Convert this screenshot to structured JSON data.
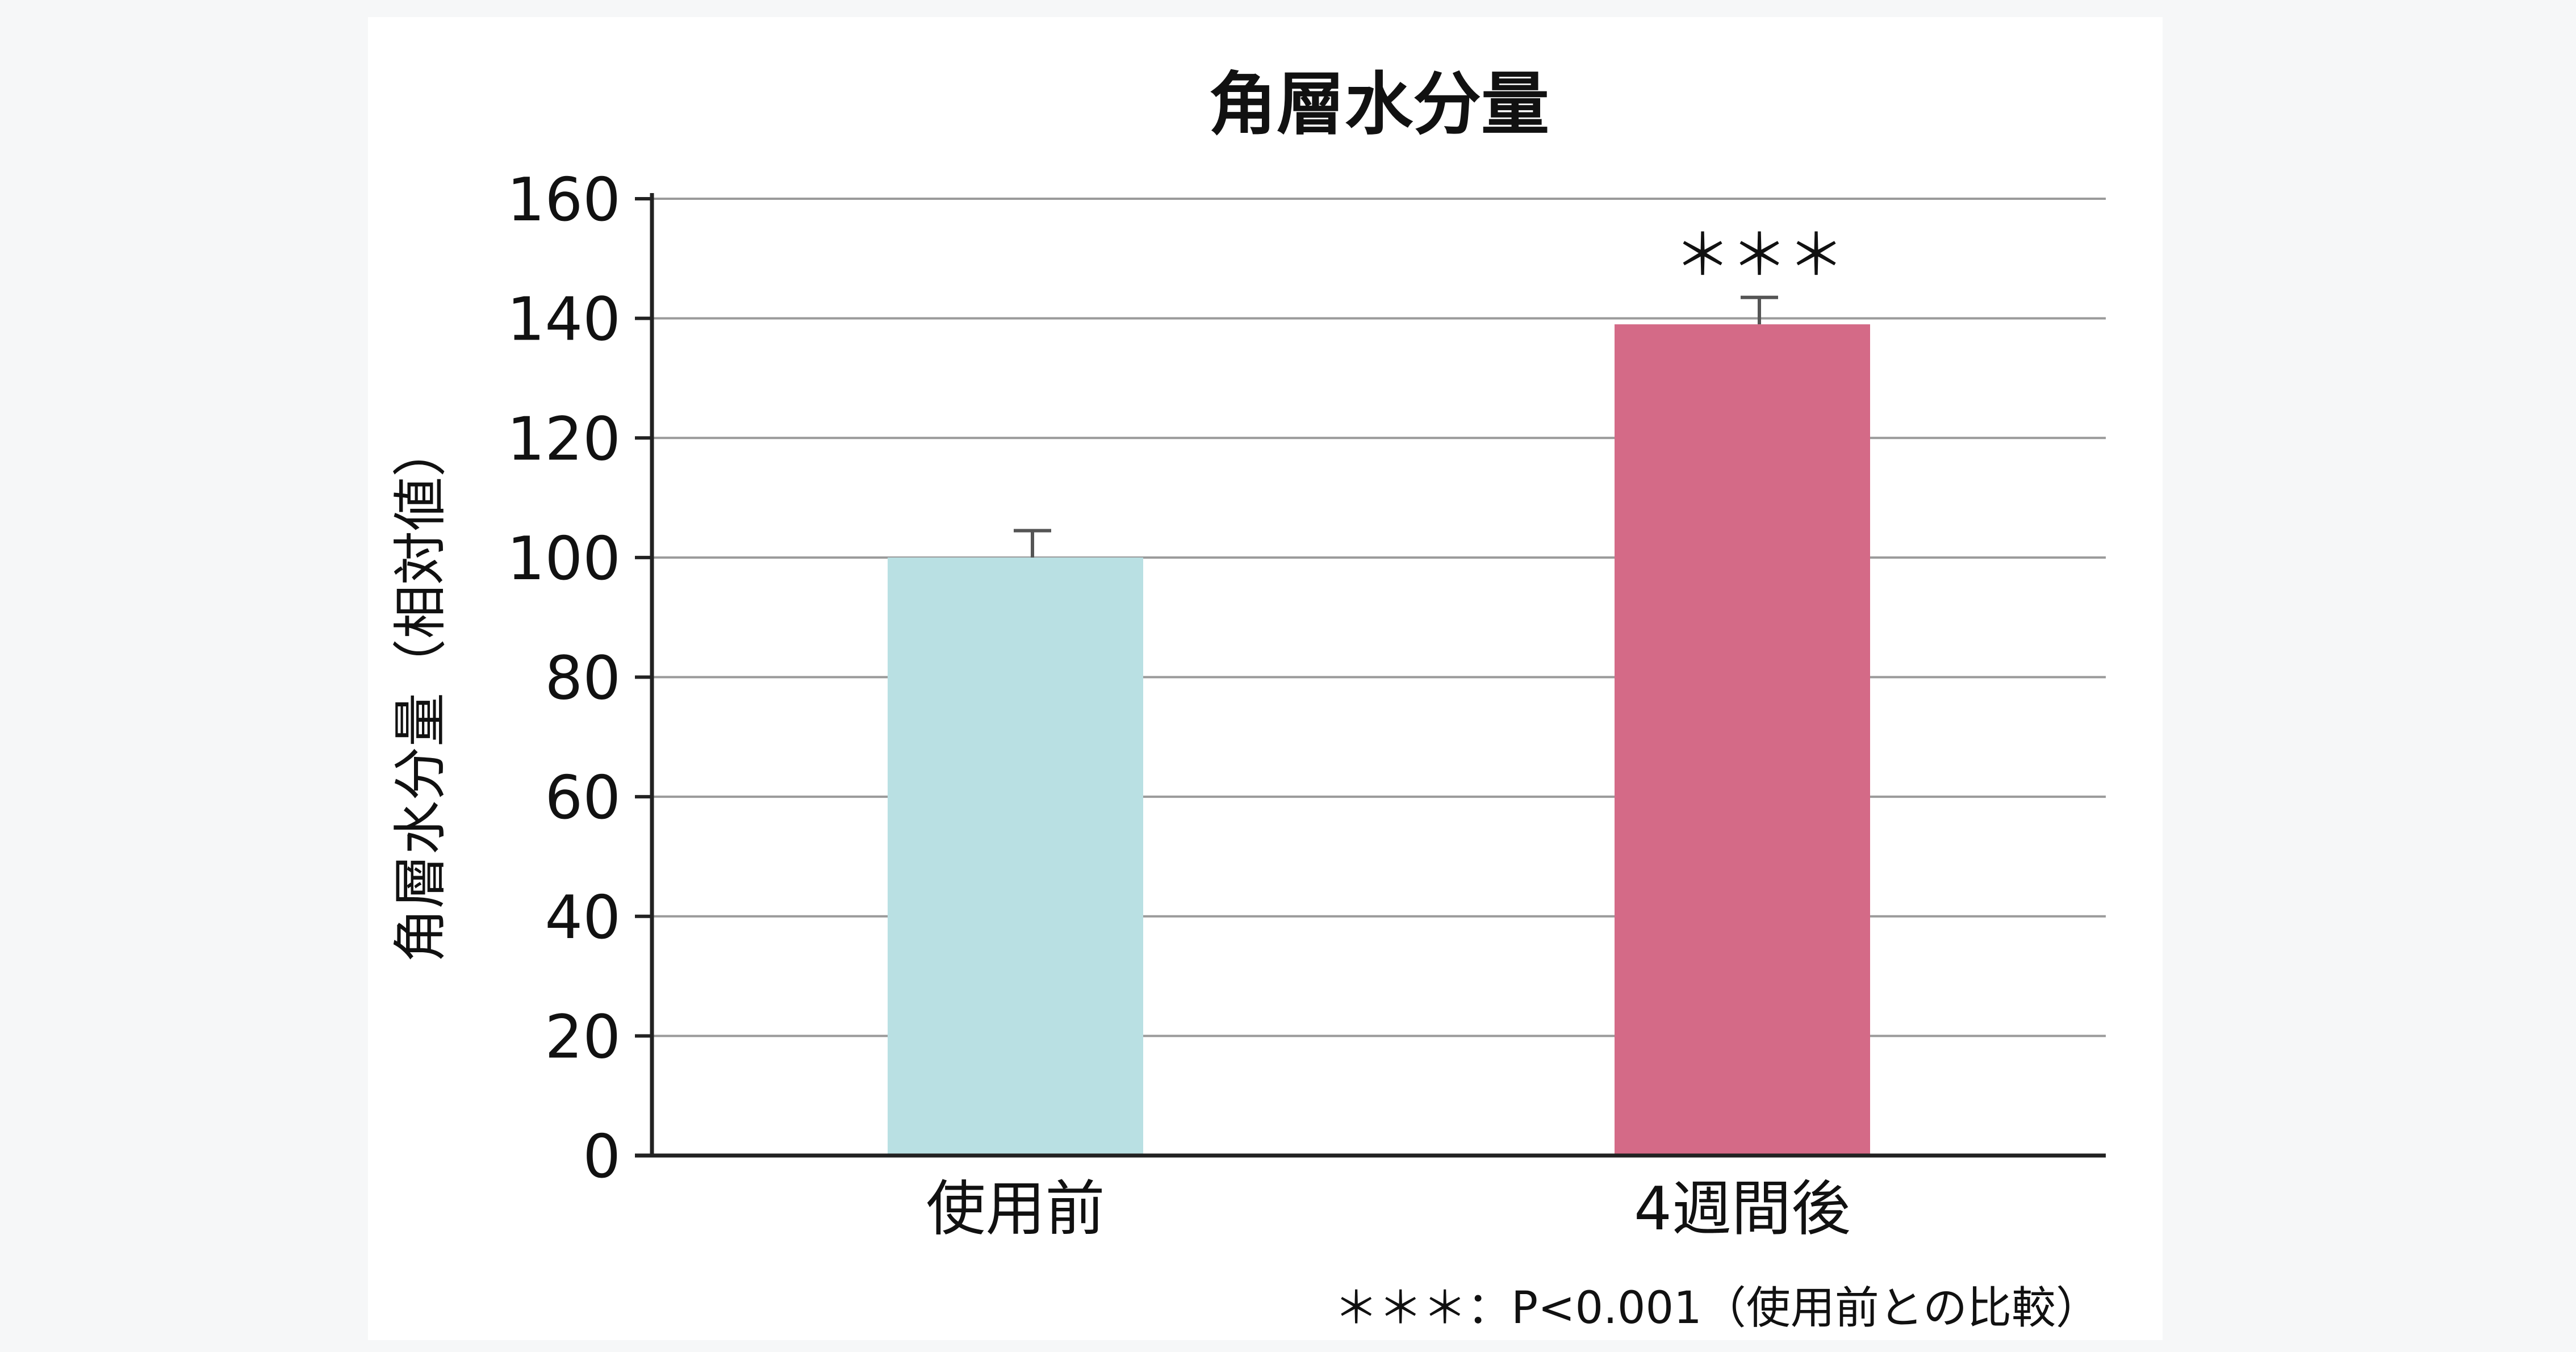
{
  "chart_data": {
    "type": "bar",
    "title": "角層水分量",
    "ylabel": "角層水分量（相対値）",
    "xlabel": "",
    "categories": [
      "使用前",
      "4週間後"
    ],
    "values": [
      100,
      139
    ],
    "error_plus": [
      4.5,
      4.5
    ],
    "ylim": [
      0,
      160
    ],
    "yticks": [
      0,
      20,
      40,
      60,
      80,
      100,
      120,
      140,
      160
    ],
    "grid": true,
    "colors": [
      "#b9e0e3",
      "#d46a87"
    ],
    "axis_color": "#222222",
    "grid_color": "#9a9a9a",
    "significance": [
      "",
      "＊＊＊"
    ],
    "footnote": "＊＊＊：P<0.001（使用前との比較）"
  }
}
